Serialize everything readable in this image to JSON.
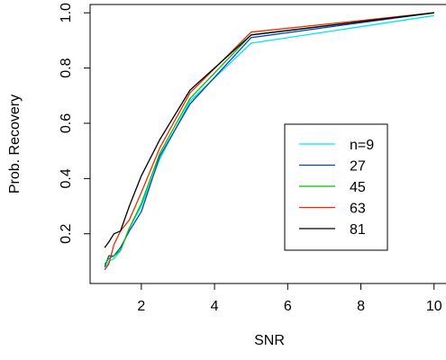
{
  "chart_data": {
    "type": "line",
    "title": "",
    "xlabel": "SNR",
    "ylabel": "Prob. Recovery",
    "xlim": [
      0.6,
      10.4
    ],
    "ylim": [
      0.02,
      1.03
    ],
    "x_ticks": [
      2,
      4,
      6,
      8,
      10
    ],
    "y_ticks": [
      0.2,
      0.4,
      0.6,
      0.8,
      1.0
    ],
    "x_tick_labels": [
      "2",
      "4",
      "6",
      "8",
      "10"
    ],
    "y_tick_labels": [
      "0.2",
      "0.4",
      "0.6",
      "0.8",
      "1.0"
    ],
    "grid": false,
    "legend_position": "center-right",
    "x": [
      1.0,
      1.11,
      1.25,
      1.43,
      1.67,
      2.0,
      2.5,
      3.33,
      5.0,
      10.0
    ],
    "series": [
      {
        "name": "n=9",
        "color": "#00e5ee",
        "values": [
          0.07,
          0.1,
          0.11,
          0.14,
          0.22,
          0.3,
          0.47,
          0.68,
          0.89,
          0.99
        ]
      },
      {
        "name": "27",
        "color": "#0044cc",
        "values": [
          0.08,
          0.12,
          0.12,
          0.15,
          0.21,
          0.28,
          0.48,
          0.67,
          0.91,
          1.0
        ]
      },
      {
        "name": "45",
        "color": "#00c000",
        "values": [
          0.09,
          0.11,
          0.12,
          0.14,
          0.22,
          0.31,
          0.49,
          0.69,
          0.92,
          1.0
        ]
      },
      {
        "name": "63",
        "color": "#ee2a00",
        "values": [
          0.07,
          0.09,
          0.16,
          0.21,
          0.25,
          0.35,
          0.51,
          0.71,
          0.93,
          1.0
        ]
      },
      {
        "name": "81",
        "color": "#000000",
        "values": [
          0.15,
          0.17,
          0.2,
          0.21,
          0.3,
          0.41,
          0.54,
          0.72,
          0.92,
          1.0
        ]
      }
    ]
  }
}
